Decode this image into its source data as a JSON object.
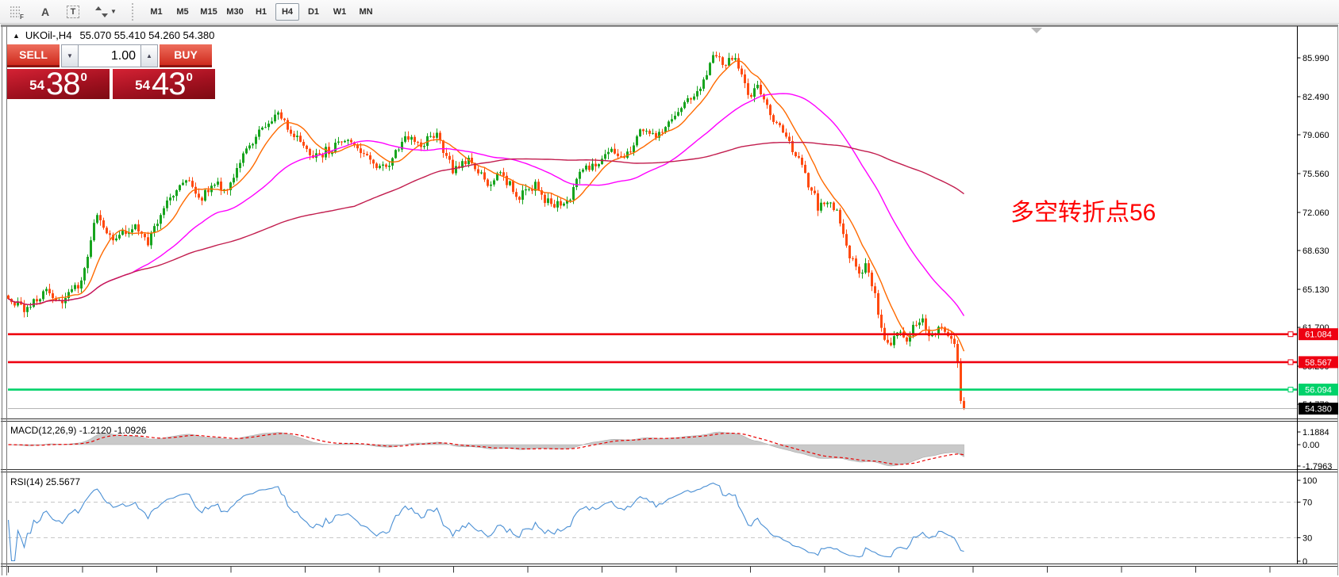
{
  "toolbar": {
    "object_tools": [
      {
        "name": "fibonacci-retracement",
        "glyph": "F"
      },
      {
        "name": "text",
        "glyph": "A"
      },
      {
        "name": "text-label",
        "glyph": "T"
      },
      {
        "name": "arrows",
        "glyph": "arrows"
      }
    ],
    "timeframes": [
      "M1",
      "M5",
      "M15",
      "M30",
      "H1",
      "H4",
      "D1",
      "W1",
      "MN"
    ],
    "active_timeframe": "H4"
  },
  "chart": {
    "symbol_period": "UKOil-,H4",
    "ohlc_text": "55.070 55.410 54.260 54.380"
  },
  "trade_panel": {
    "sell_label": "SELL",
    "buy_label": "BUY",
    "volume": "1.00",
    "spin_down": "▼",
    "spin_up": "▲",
    "sell_price_small": "54",
    "sell_price_big": "38",
    "sell_price_sup": "0",
    "buy_price_small": "54",
    "buy_price_big": "43",
    "buy_price_sup": "0"
  },
  "annotation": {
    "text": "多空转折点56",
    "color": "#ff0000"
  },
  "indicators": {
    "macd_label": "MACD(12,26,9) -1.2120 -1.0926",
    "rsi_label": "RSI(14) 25.5677",
    "macd_axis": [
      "1.1884",
      "0.00",
      "-1.7963"
    ],
    "rsi_axis": [
      "100",
      "70",
      "30",
      "0"
    ]
  },
  "price_axis": {
    "ticks": [
      {
        "label": "85.990",
        "value": 85.99
      },
      {
        "label": "82.490",
        "value": 82.49
      },
      {
        "label": "79.060",
        "value": 79.06
      },
      {
        "label": "75.560",
        "value": 75.56
      },
      {
        "label": "72.060",
        "value": 72.06
      },
      {
        "label": "68.630",
        "value": 68.63
      },
      {
        "label": "65.130",
        "value": 65.13
      },
      {
        "label": "61.700",
        "value": 61.7
      },
      {
        "label": "58.200",
        "value": 58.2
      },
      {
        "label": "54.770",
        "value": 54.77
      }
    ],
    "levels": [
      {
        "label": "61.084",
        "value": 61.084,
        "color": "#ee0011",
        "kind": "resistance-line"
      },
      {
        "label": "58.567",
        "value": 58.567,
        "color": "#ee0011",
        "kind": "resistance-line"
      },
      {
        "label": "56.094",
        "value": 56.094,
        "color": "#00d26a",
        "kind": "support-line"
      },
      {
        "label": "54.380",
        "value": 54.38,
        "color": "#000000",
        "kind": "current-price-line"
      }
    ]
  },
  "chart_data": {
    "type": "candlestick",
    "symbol": "UKOil-",
    "period": "H4",
    "candle_count": 302,
    "y_axis_range": [
      53.3,
      88.9
    ],
    "last_candle": {
      "open": 55.07,
      "high": 55.41,
      "low": 54.26,
      "close": 54.38
    },
    "price_anchors": {
      "index": [
        0,
        5,
        11,
        18,
        23,
        28,
        33,
        39,
        44,
        50,
        56,
        61,
        65,
        69,
        74,
        80,
        85,
        90,
        96,
        103,
        109,
        114,
        119,
        125,
        130,
        135,
        140,
        145,
        151,
        155,
        161,
        166,
        171,
        176,
        180,
        185,
        190,
        194,
        200,
        204,
        209,
        213,
        218,
        223,
        225,
        229,
        233,
        236,
        240,
        244,
        248,
        251,
        255,
        259,
        263,
        265,
        268,
        270,
        273,
        275,
        278,
        280,
        283,
        285,
        288,
        290,
        293,
        295,
        298,
        300,
        301
      ],
      "close": [
        64.2,
        63.4,
        64.8,
        64.2,
        66.0,
        71.8,
        69.3,
        70.8,
        69.5,
        73.0,
        75.3,
        73.2,
        75.0,
        73.8,
        77.5,
        79.5,
        80.8,
        79.0,
        76.8,
        78.0,
        78.5,
        76.5,
        76.2,
        78.8,
        78.0,
        79.3,
        75.8,
        77.2,
        74.3,
        75.6,
        73.4,
        74.6,
        72.6,
        73.0,
        75.8,
        76.3,
        77.8,
        77.0,
        79.5,
        78.8,
        80.5,
        82.0,
        83.5,
        86.3,
        85.2,
        85.8,
        82.8,
        83.4,
        80.6,
        79.4,
        77.5,
        75.2,
        72.6,
        73.4,
        70.5,
        68.2,
        66.4,
        67.6,
        64.6,
        61.3,
        60.2,
        61.6,
        60.4,
        61.9,
        62.3,
        61.0,
        61.6,
        61.2,
        60.2,
        56.8,
        54.4
      ]
    },
    "colors": {
      "up_candle": "#17a41e",
      "down_candle": "#ff4a10",
      "ma_fast": "#ff6a00",
      "ma_mid": "#ff00ff",
      "ma_slow": "#c21d4e",
      "macd_fill": "#c9c9c9",
      "macd_signal": "#e80000",
      "rsi_line": "#4a8fd4"
    },
    "moving_averages": [
      {
        "period": 10,
        "color": "#ff6a00"
      },
      {
        "period": 40,
        "color": "#ff00ff"
      },
      {
        "period": 110,
        "color": "#c21d4e"
      }
    ],
    "sub_indicators": {
      "macd": {
        "fast": 12,
        "slow": 26,
        "signal": 9,
        "current": "-1.2120 -1.0926",
        "scale_max": 1.1884,
        "scale_min": -1.7963
      },
      "rsi": {
        "period": 14,
        "current": 25.5677,
        "levels": [
          70,
          30
        ]
      }
    }
  }
}
